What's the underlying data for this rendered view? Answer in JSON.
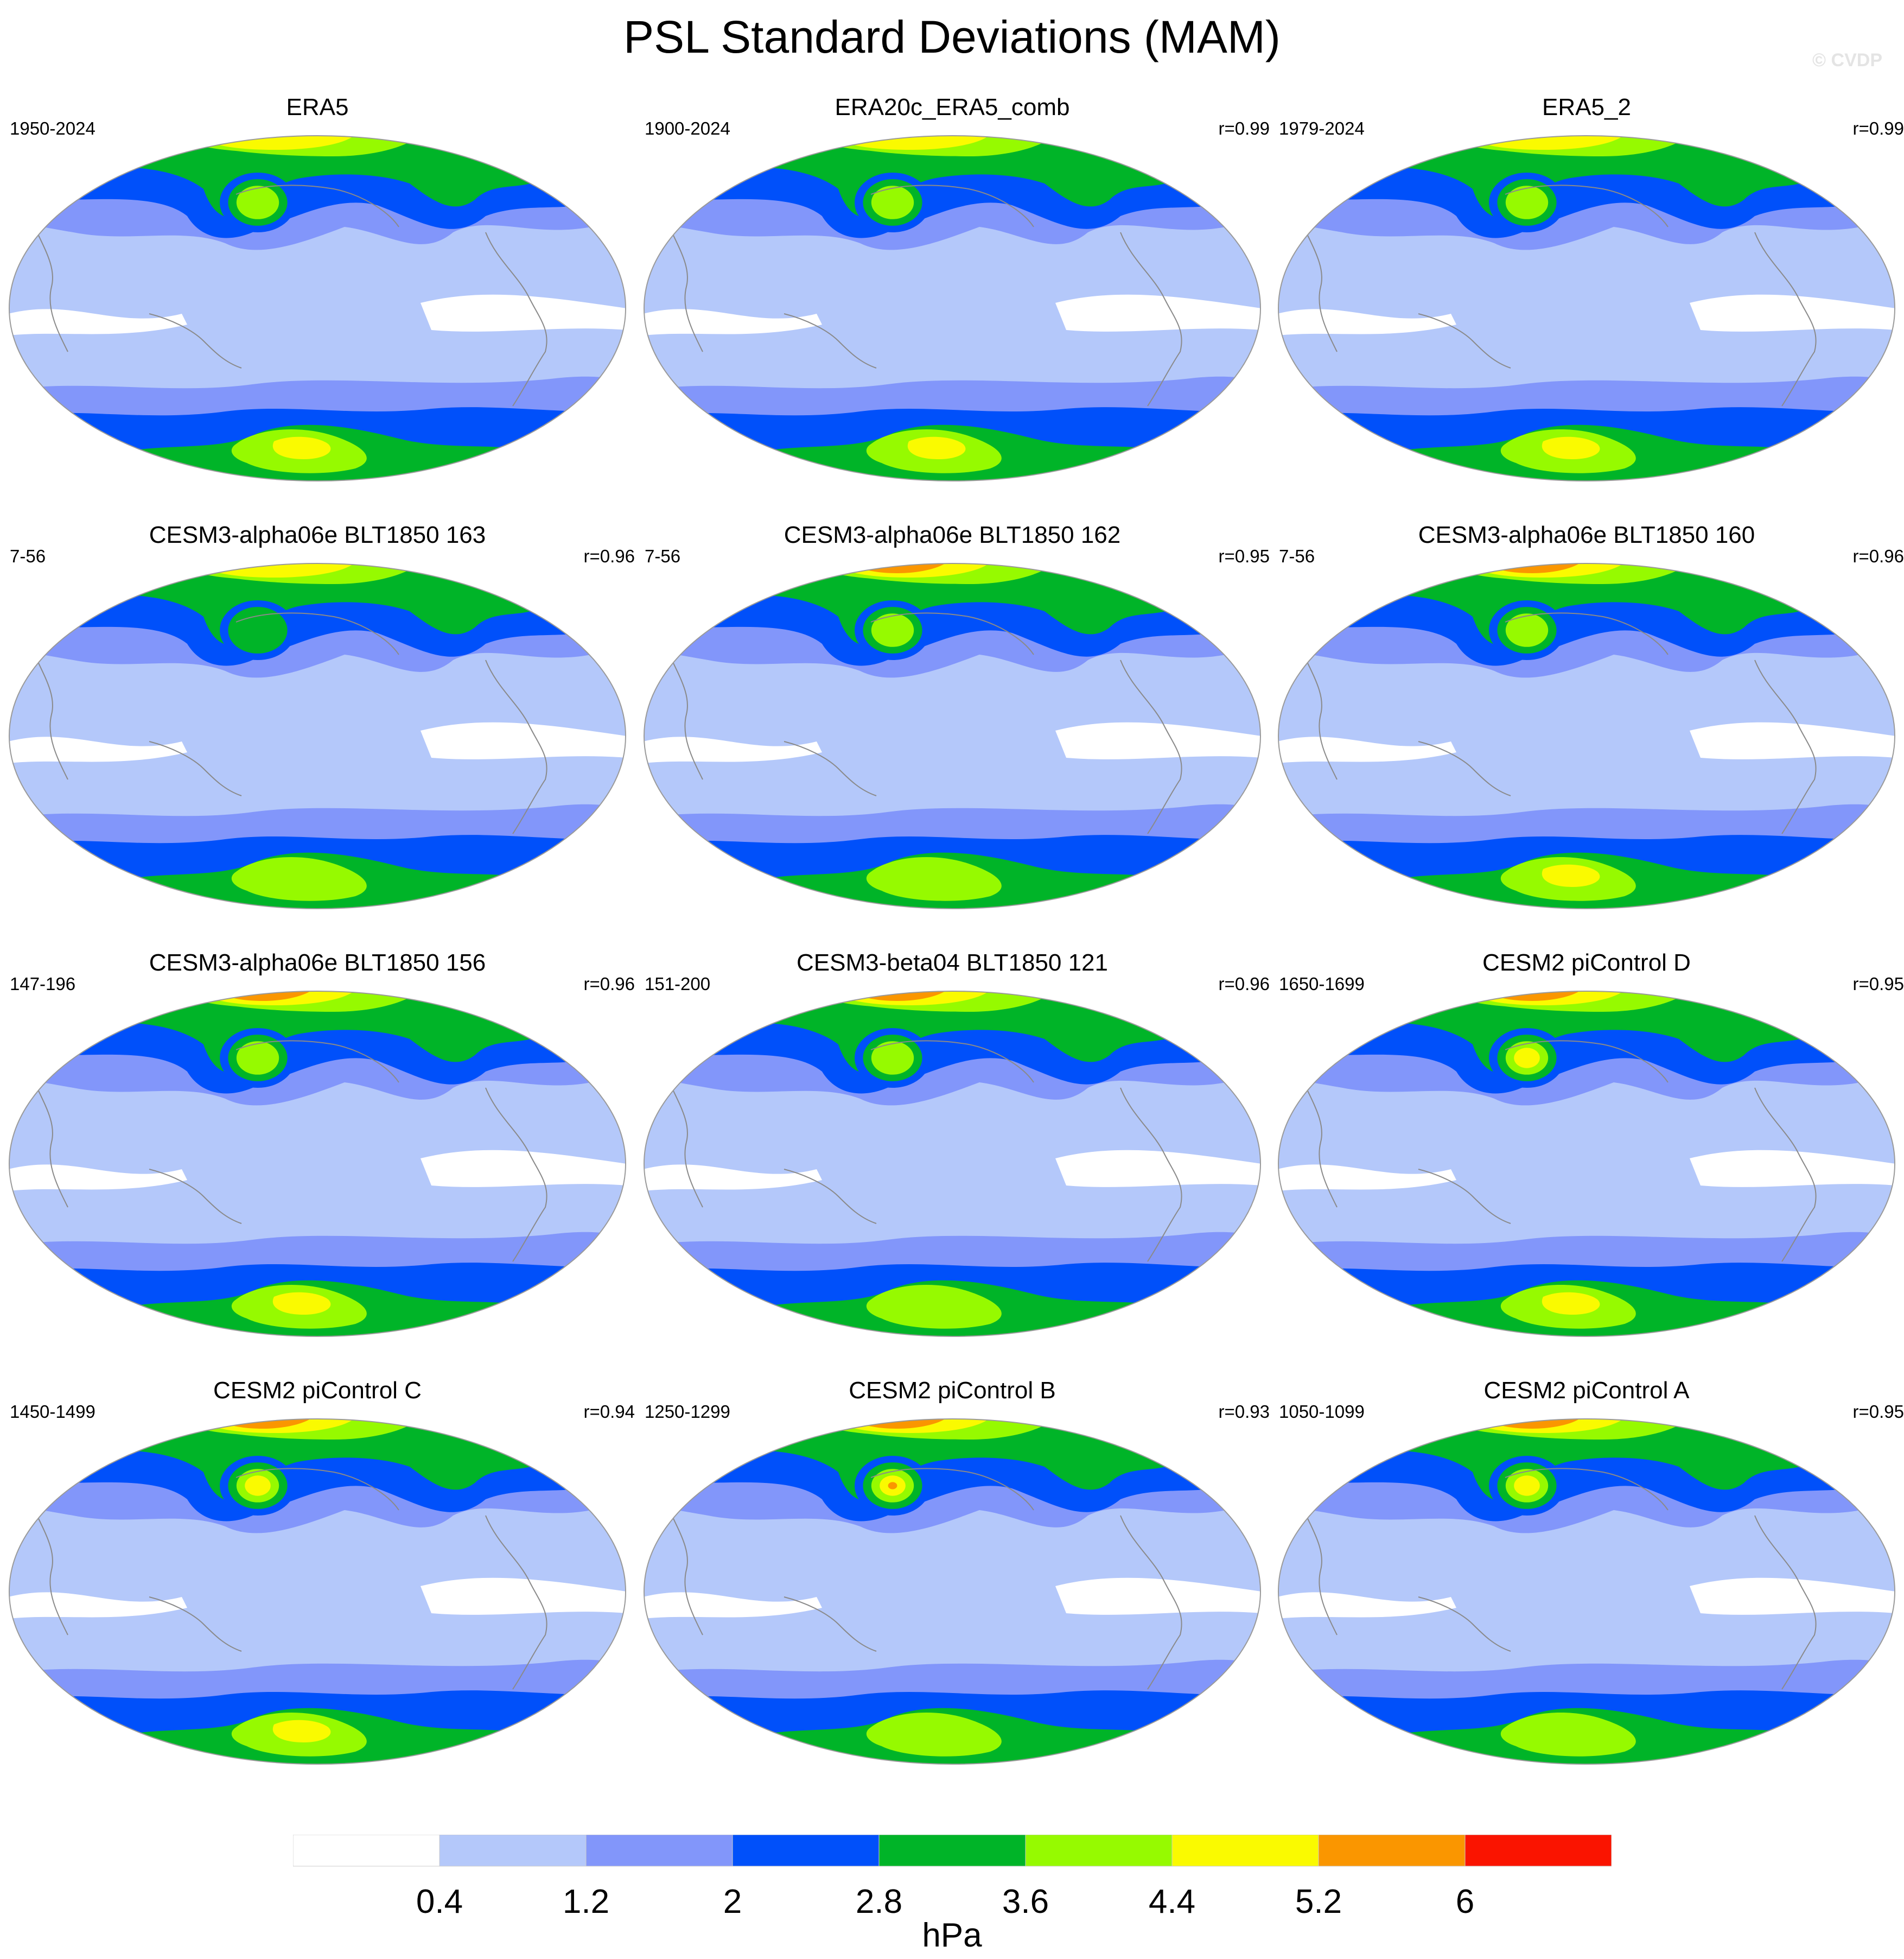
{
  "title": "PSL Standard Deviations (MAM)",
  "watermark": "© CVDP",
  "colors": [
    "#ffffff",
    "#b4c8fa",
    "#8296fa",
    "#0050fa",
    "#00b428",
    "#96fa00",
    "#fafa00",
    "#fa9600",
    "#fa1400"
  ],
  "colorbar": {
    "labels": [
      "0.4",
      "1.2",
      "2",
      "2.8",
      "3.6",
      "4.4",
      "5.2",
      "6"
    ],
    "units": "hPa"
  },
  "panels": [
    {
      "title": "ERA5",
      "years": "1950-2024",
      "corr": "",
      "nh": 6,
      "nh_blob": 5,
      "sh": 6,
      "sh_blob": 6
    },
    {
      "title": "ERA20c_ERA5_comb",
      "years": "1900-2024",
      "corr": "r=0.99",
      "nh": 6,
      "nh_blob": 5,
      "sh": 6,
      "sh_blob": 6
    },
    {
      "title": "ERA5_2",
      "years": "1979-2024",
      "corr": "r=0.99",
      "nh": 6,
      "nh_blob": 5,
      "sh": 6,
      "sh_blob": 6
    },
    {
      "title": "CESM3-alpha06e BLT1850 163",
      "years": "7-56",
      "corr": "r=0.96",
      "nh": 6,
      "nh_blob": 4,
      "sh": 5,
      "sh_blob": 5
    },
    {
      "title": "CESM3-alpha06e BLT1850 162",
      "years": "7-56",
      "corr": "r=0.95",
      "nh": 8,
      "nh_blob": 5,
      "sh": 5,
      "sh_blob": 5
    },
    {
      "title": "CESM3-alpha06e BLT1850 160",
      "years": "7-56",
      "corr": "r=0.96",
      "nh": 7,
      "nh_blob": 5,
      "sh": 6,
      "sh_blob": 5
    },
    {
      "title": "CESM3-alpha06e BLT1850 156",
      "years": "147-196",
      "corr": "r=0.96",
      "nh": 7,
      "nh_blob": 5,
      "sh": 6,
      "sh_blob": 5
    },
    {
      "title": "CESM3-beta04 BLT1850 121",
      "years": "151-200",
      "corr": "r=0.96",
      "nh": 8,
      "nh_blob": 5,
      "sh": 5,
      "sh_blob": 5
    },
    {
      "title": "CESM2 piControl D",
      "years": "1650-1699",
      "corr": "r=0.95",
      "nh": 8,
      "nh_blob": 6,
      "sh": 6,
      "sh_blob": 5
    },
    {
      "title": "CESM2 piControl C",
      "years": "1450-1499",
      "corr": "r=0.94",
      "nh": 8,
      "nh_blob": 6,
      "sh": 6,
      "sh_blob": 5
    },
    {
      "title": "CESM2 piControl B",
      "years": "1250-1299",
      "corr": "r=0.93",
      "nh": 8,
      "nh_blob": 8,
      "sh": 5,
      "sh_blob": 5
    },
    {
      "title": "CESM2 piControl A",
      "years": "1050-1099",
      "corr": "r=0.95",
      "nh": 8,
      "nh_blob": 6,
      "sh": 5,
      "sh_blob": 6
    }
  ]
}
